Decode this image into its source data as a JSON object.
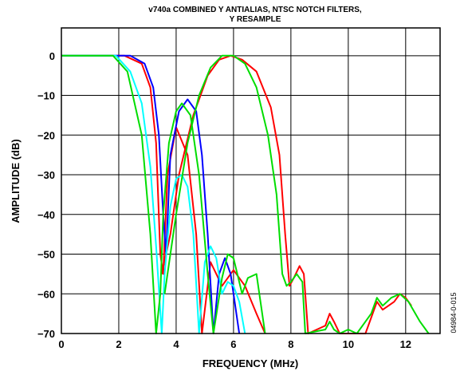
{
  "chart_data": {
    "type": "line",
    "title": "v740a COMBINED Y ANTIALIAS, NTSC NOTCH FILTERS,",
    "subtitle": "Y RESAMPLE",
    "xlabel": "FREQUENCY (MHz)",
    "ylabel": "AMPLITUDE (dB)",
    "xlim": [
      0,
      13.2
    ],
    "ylim": [
      -70,
      7
    ],
    "x_ticks": [
      "0",
      "2",
      "4",
      "6",
      "8",
      "10",
      "12"
    ],
    "y_ticks": [
      "0",
      "−10",
      "−20",
      "−30",
      "−40",
      "−50",
      "−60",
      "−70"
    ],
    "grid": true,
    "figure_id": "04984-0-015",
    "series": [
      {
        "color": "#ff0000",
        "x": [
          0,
          2.2,
          2.8,
          3.1,
          3.3,
          3.45,
          3.55,
          3.7,
          4.0,
          4.4,
          4.7,
          4.9,
          5.2,
          5.6,
          6.0,
          6.4,
          6.8,
          7.1
        ],
        "y": [
          0,
          0,
          -2,
          -8,
          -22,
          -50,
          -55,
          -30,
          -18,
          -25,
          -45,
          -70,
          -52,
          -58,
          -54,
          -58,
          -65,
          -70
        ]
      },
      {
        "color": "#ff0000",
        "x": [
          3.5,
          3.8,
          4.1,
          4.6,
          5.1,
          5.5,
          5.9,
          6.3,
          6.8,
          7.3,
          7.6,
          7.8,
          7.95,
          8.1,
          8.3,
          8.45,
          8.6,
          9.2,
          9.35,
          9.5,
          9.7,
          10.0,
          10.3,
          10.6,
          10.8,
          11.0,
          11.2,
          11.6,
          11.8,
          12.0,
          12.2
        ],
        "y": [
          -55,
          -45,
          -30,
          -15,
          -5,
          -1,
          0,
          -1,
          -4,
          -13,
          -25,
          -45,
          -58,
          -56,
          -53,
          -55,
          -70,
          -68,
          -65,
          -67,
          -70,
          -70,
          -70,
          -70,
          -66,
          -62,
          -64,
          -62,
          -60,
          -61,
          -63
        ]
      },
      {
        "color": "#0000ff",
        "x": [
          0,
          2.4,
          2.9,
          3.2,
          3.4,
          3.55,
          3.65,
          3.8,
          4.1,
          4.4,
          4.7,
          4.9,
          5.1,
          5.3,
          5.5,
          5.7,
          5.9,
          6.2
        ],
        "y": [
          0,
          0,
          -2,
          -8,
          -20,
          -40,
          -50,
          -25,
          -14,
          -11,
          -14,
          -25,
          -45,
          -70,
          -55,
          -51,
          -55,
          -70
        ]
      },
      {
        "color": "#00ffff",
        "x": [
          0,
          1.9,
          2.4,
          2.8,
          3.1,
          3.3,
          3.5,
          3.6,
          3.8,
          4.0,
          4.2,
          4.4,
          4.6,
          4.8,
          5.0,
          5.2,
          5.4,
          5.6,
          5.8,
          6.0,
          6.2,
          6.4
        ],
        "y": [
          0,
          0,
          -4,
          -12,
          -28,
          -48,
          -70,
          -55,
          -38,
          -31,
          -30,
          -33,
          -45,
          -70,
          -52,
          -48,
          -51,
          -60,
          -57,
          -58,
          -62,
          -70
        ]
      },
      {
        "color": "#00dd00",
        "x": [
          0,
          1.8,
          2.3,
          2.8,
          3.1,
          3.3,
          3.45,
          3.55,
          3.75,
          4.0,
          4.2,
          4.5,
          4.8,
          5.1,
          5.3,
          5.6,
          5.8,
          6.0,
          6.3,
          6.5,
          6.8,
          7.1
        ],
        "y": [
          0,
          0,
          -4,
          -20,
          -45,
          -70,
          -60,
          -40,
          -22,
          -14,
          -12,
          -15,
          -30,
          -55,
          -70,
          -56,
          -50,
          -51,
          -60,
          -56,
          -55,
          -70
        ]
      },
      {
        "color": "#00dd00",
        "x": [
          3.6,
          4.0,
          4.4,
          4.8,
          5.2,
          5.6,
          6.0,
          6.4,
          6.8,
          7.2,
          7.5,
          7.7,
          7.85,
          8.0,
          8.2,
          8.4,
          8.5,
          9.2,
          9.35,
          9.5,
          9.7,
          10.0,
          10.3,
          10.6,
          10.8,
          11.0,
          11.2,
          11.5,
          11.8,
          12.1,
          12.5,
          12.8
        ],
        "y": [
          -60,
          -40,
          -22,
          -10,
          -3,
          0,
          0,
          -2,
          -8,
          -20,
          -35,
          -55,
          -58,
          -57,
          -55,
          -57,
          -70,
          -69,
          -67,
          -69,
          -70,
          -69,
          -70,
          -67,
          -65,
          -61,
          -63,
          -61,
          -60,
          -62,
          -67,
          -70
        ]
      }
    ]
  }
}
